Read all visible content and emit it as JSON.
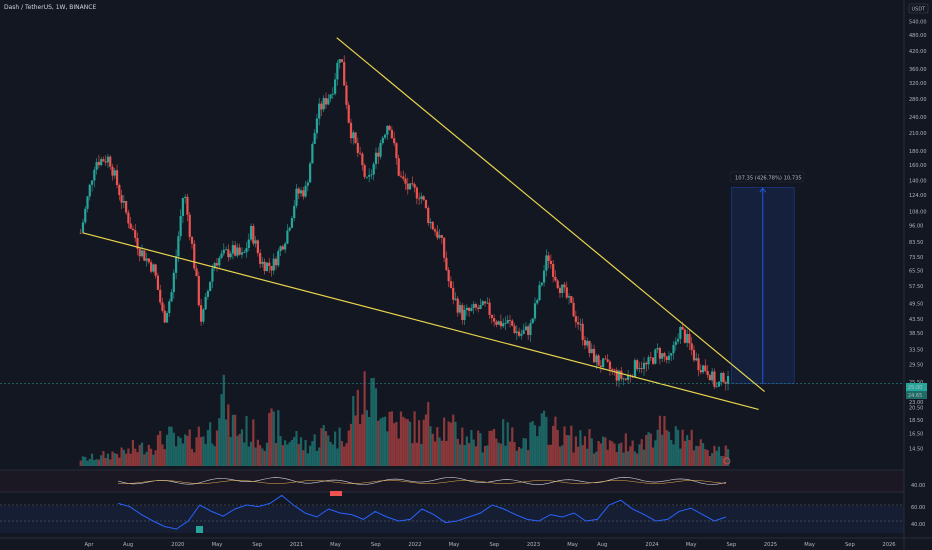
{
  "header": {
    "symbol_line": "Dash / TetherUS, 1W, BINANCE"
  },
  "currency_label": "USDT",
  "price_labels": {
    "last": "25.00",
    "second": "24.65",
    "bottom": "23.00"
  },
  "measure_label": "107.35 (426.78%) 10,735",
  "indicator_levels": {
    "osc_label": "40.00",
    "rsi_high": "60.00",
    "rsi_low": "40.00"
  },
  "rsi_markers": [
    "",
    ""
  ],
  "colors": {
    "bg": "#131722",
    "up": "#26a69a",
    "down": "#ef5350",
    "trend": "#e8d44d",
    "rsi": "#2962ff",
    "measure": "#2962ff"
  },
  "chart_data": {
    "type": "candlestick",
    "title": "Dash / TetherUS, 1W, BINANCE",
    "y_scale": "log",
    "ylim": [
      13.5,
      560
    ],
    "y_ticks": [
      540,
      480,
      420,
      360,
      320,
      280,
      240,
      210,
      180,
      160,
      140,
      124,
      108,
      96,
      83.5,
      73.5,
      65.5,
      57.5,
      49.5,
      43.5,
      38.5,
      33.5,
      29.5,
      25.5,
      23.5,
      20.5,
      18.5,
      16.5,
      14.5
    ],
    "y_tick_labels": [
      "540.00",
      "480.00",
      "420.00",
      "360.00",
      "320.00",
      "280.00",
      "240.00",
      "210.00",
      "180.00",
      "160.00",
      "140.00",
      "124.00",
      "108.00",
      "96.00",
      "83.50",
      "73.50",
      "65.50",
      "57.50",
      "49.50",
      "43.50",
      "38.50",
      "33.50",
      "29.50",
      "25.50",
      "23.50",
      "20.50",
      "18.50",
      "16.50",
      "14.50"
    ],
    "x_labels": [
      "Apr",
      "Aug",
      "2020",
      "May",
      "Sep",
      "2021",
      "May",
      "Sep",
      "2022",
      "May",
      "Sep",
      "2023",
      "May",
      "Aug",
      "2024",
      "May",
      "Sep",
      "2025",
      "May",
      "Sep",
      "2026"
    ],
    "x_label_months": [
      2019.25,
      2019.58,
      2020.0,
      2020.33,
      2020.67,
      2021.0,
      2021.33,
      2021.67,
      2022.0,
      2022.33,
      2022.67,
      2023.0,
      2023.33,
      2023.58,
      2024.0,
      2024.33,
      2024.67,
      2025.0,
      2025.33,
      2025.67,
      2026.0
    ],
    "price_path": [
      [
        2019.18,
        90
      ],
      [
        2019.3,
        165
      ],
      [
        2019.42,
        170
      ],
      [
        2019.55,
        110
      ],
      [
        2019.68,
        78
      ],
      [
        2019.8,
        66
      ],
      [
        2019.88,
        43
      ],
      [
        2019.95,
        55
      ],
      [
        2020.05,
        130
      ],
      [
        2020.12,
        80
      ],
      [
        2020.2,
        42
      ],
      [
        2020.3,
        70
      ],
      [
        2020.45,
        78
      ],
      [
        2020.55,
        73
      ],
      [
        2020.62,
        92
      ],
      [
        2020.7,
        70
      ],
      [
        2020.8,
        68
      ],
      [
        2020.92,
        90
      ],
      [
        2021.0,
        125
      ],
      [
        2021.08,
        130
      ],
      [
        2021.18,
        250
      ],
      [
        2021.3,
        300
      ],
      [
        2021.37,
        420
      ],
      [
        2021.45,
        220
      ],
      [
        2021.55,
        160
      ],
      [
        2021.6,
        135
      ],
      [
        2021.72,
        200
      ],
      [
        2021.78,
        235
      ],
      [
        2021.87,
        145
      ],
      [
        2021.95,
        130
      ],
      [
        2022.05,
        125
      ],
      [
        2022.12,
        100
      ],
      [
        2022.22,
        85
      ],
      [
        2022.3,
        55
      ],
      [
        2022.4,
        45
      ],
      [
        2022.5,
        47
      ],
      [
        2022.6,
        48
      ],
      [
        2022.7,
        42
      ],
      [
        2022.8,
        42
      ],
      [
        2022.88,
        38
      ],
      [
        2022.97,
        40
      ],
      [
        2023.05,
        55
      ],
      [
        2023.12,
        75
      ],
      [
        2023.2,
        60
      ],
      [
        2023.28,
        52
      ],
      [
        2023.38,
        42
      ],
      [
        2023.47,
        33
      ],
      [
        2023.55,
        30
      ],
      [
        2023.62,
        29
      ],
      [
        2023.7,
        27
      ],
      [
        2023.78,
        26
      ],
      [
        2023.88,
        30
      ],
      [
        2023.95,
        29
      ],
      [
        2024.05,
        33
      ],
      [
        2024.15,
        30
      ],
      [
        2024.23,
        40
      ],
      [
        2024.3,
        36
      ],
      [
        2024.38,
        30
      ],
      [
        2024.48,
        28
      ],
      [
        2024.55,
        24
      ],
      [
        2024.6,
        27
      ],
      [
        2024.65,
        25
      ]
    ],
    "support_line": {
      "x": [
        2019.2,
        2024.9
      ],
      "y": [
        90,
        20.2
      ]
    },
    "resistance_line": {
      "x": [
        2021.34,
        2024.95
      ],
      "y": [
        470,
        23.5
      ]
    },
    "projection": {
      "x": [
        2024.67,
        2025.2
      ],
      "y": [
        25.1,
        132.5
      ]
    },
    "volume_relative": [
      0.1,
      0.12,
      0.15,
      0.18,
      0.2,
      0.25,
      0.3,
      0.35,
      0.4,
      0.3,
      0.35,
      0.45,
      0.5,
      0.9,
      0.6,
      0.5,
      0.45,
      0.4,
      0.55,
      0.35,
      0.4,
      0.3,
      0.35,
      0.45,
      0.4,
      0.5,
      0.85,
      0.95,
      1.0,
      0.7,
      0.6,
      0.55,
      0.5,
      0.65,
      0.6,
      0.5,
      0.45,
      0.4,
      0.35,
      0.5,
      0.45,
      0.4,
      0.35,
      0.45,
      0.55,
      0.5,
      0.4,
      0.35,
      0.4,
      0.3,
      0.3,
      0.25,
      0.35,
      0.3,
      0.45,
      0.5,
      0.4,
      0.45,
      0.35,
      0.3,
      0.25,
      0.2
    ],
    "rsi_series": [
      62,
      58,
      48,
      40,
      33,
      30,
      40,
      60,
      52,
      46,
      55,
      60,
      58,
      62,
      72,
      60,
      50,
      45,
      55,
      50,
      48,
      42,
      52,
      45,
      40,
      42,
      55,
      48,
      38,
      40,
      45,
      50,
      60,
      55,
      48,
      42,
      40,
      48,
      45,
      50,
      40,
      42,
      60,
      66,
      55,
      48,
      40,
      42,
      52,
      56,
      48,
      40,
      45
    ],
    "rsi_levels": [
      60,
      40
    ]
  }
}
